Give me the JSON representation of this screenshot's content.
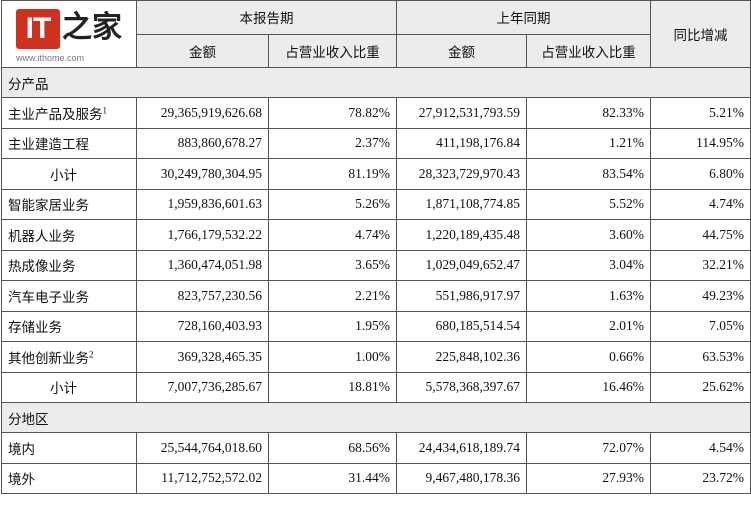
{
  "watermark": {
    "badge": "IT",
    "glyph": "之家",
    "url": "www.ithome.com"
  },
  "header": {
    "current_period": "本报告期",
    "prior_period": "上年同期",
    "yoy": "同比增减",
    "amount": "金额",
    "share": "占营业收入比重"
  },
  "sections": {
    "by_product": "分产品",
    "by_region": "分地区"
  },
  "rows": [
    {
      "label": "主业产品及服务",
      "note": "1",
      "cur_amount": "29,365,919,626.68",
      "cur_share": "78.82%",
      "prev_amount": "27,912,531,793.59",
      "prev_share": "82.33%",
      "yoy": "5.21%"
    },
    {
      "label": "主业建造工程",
      "note": "",
      "cur_amount": "883,860,678.27",
      "cur_share": "2.37%",
      "prev_amount": "411,198,176.84",
      "prev_share": "1.21%",
      "yoy": "114.95%"
    },
    {
      "label": "小计",
      "note": "",
      "cur_amount": "30,249,780,304.95",
      "cur_share": "81.19%",
      "prev_amount": "28,323,729,970.43",
      "prev_share": "83.54%",
      "yoy": "6.80%"
    },
    {
      "label": "智能家居业务",
      "note": "",
      "cur_amount": "1,959,836,601.63",
      "cur_share": "5.26%",
      "prev_amount": "1,871,108,774.85",
      "prev_share": "5.52%",
      "yoy": "4.74%"
    },
    {
      "label": "机器人业务",
      "note": "",
      "cur_amount": "1,766,179,532.22",
      "cur_share": "4.74%",
      "prev_amount": "1,220,189,435.48",
      "prev_share": "3.60%",
      "yoy": "44.75%"
    },
    {
      "label": "热成像业务",
      "note": "",
      "cur_amount": "1,360,474,051.98",
      "cur_share": "3.65%",
      "prev_amount": "1,029,049,652.47",
      "prev_share": "3.04%",
      "yoy": "32.21%"
    },
    {
      "label": "汽车电子业务",
      "note": "",
      "cur_amount": "823,757,230.56",
      "cur_share": "2.21%",
      "prev_amount": "551,986,917.97",
      "prev_share": "1.63%",
      "yoy": "49.23%"
    },
    {
      "label": "存储业务",
      "note": "",
      "cur_amount": "728,160,403.93",
      "cur_share": "1.95%",
      "prev_amount": "680,185,514.54",
      "prev_share": "2.01%",
      "yoy": "7.05%"
    },
    {
      "label": "其他创新业务",
      "note": "2",
      "cur_amount": "369,328,465.35",
      "cur_share": "1.00%",
      "prev_amount": "225,848,102.36",
      "prev_share": "0.66%",
      "yoy": "63.53%"
    },
    {
      "label": "小计",
      "note": "",
      "cur_amount": "7,007,736,285.67",
      "cur_share": "18.81%",
      "prev_amount": "5,578,368,397.67",
      "prev_share": "16.46%",
      "yoy": "25.62%"
    },
    {
      "label": "境内",
      "note": "",
      "cur_amount": "25,544,764,018.60",
      "cur_share": "68.56%",
      "prev_amount": "24,434,618,189.74",
      "prev_share": "72.07%",
      "yoy": "4.54%"
    },
    {
      "label": "境外",
      "note": "",
      "cur_amount": "11,712,752,572.02",
      "cur_share": "31.44%",
      "prev_amount": "9,467,480,178.36",
      "prev_share": "27.93%",
      "yoy": "23.72%"
    }
  ],
  "colors": {
    "header_bg": "#ececec",
    "border": "#555555",
    "logo_red": "#d0301e"
  }
}
